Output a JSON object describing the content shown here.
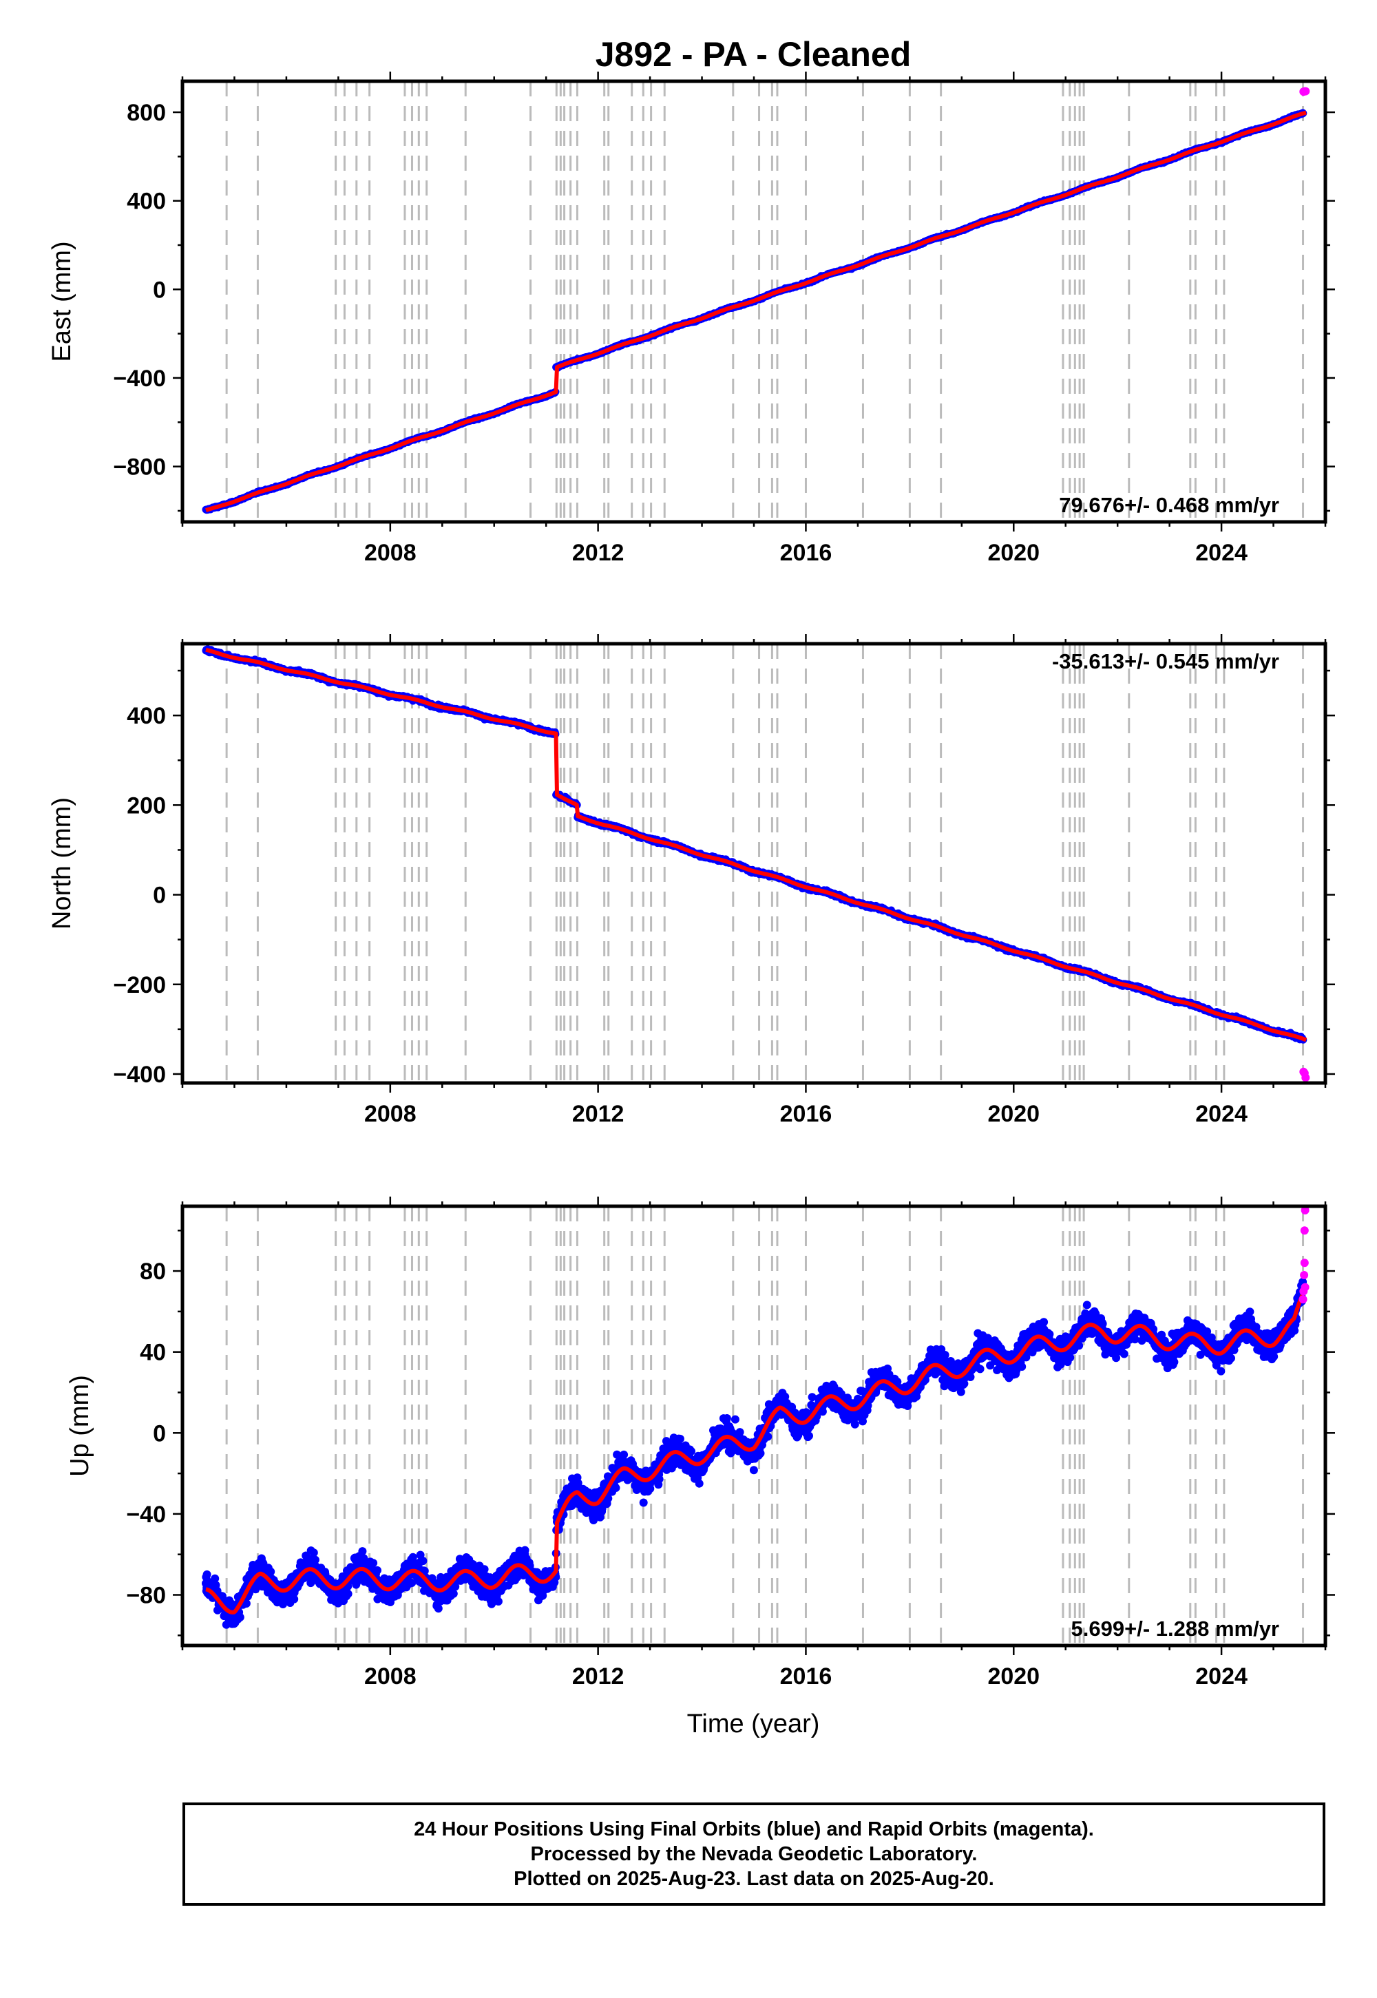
{
  "title": "J892  - PA - Cleaned",
  "xlabel": "Time (year)",
  "colors": {
    "final_orbits": "#0000ff",
    "rapid_orbits": "#ff00ff",
    "model": "#ff0000",
    "event_lines": "#bbbbbb"
  },
  "event_years": [
    2004.85,
    2005.45,
    2006.95,
    2007.12,
    2007.35,
    2007.6,
    2008.28,
    2008.42,
    2008.55,
    2008.7,
    2009.45,
    2010.7,
    2011.2,
    2011.28,
    2011.35,
    2011.47,
    2011.6,
    2012.12,
    2012.2,
    2012.65,
    2012.87,
    2013.02,
    2013.28,
    2014.6,
    2015.1,
    2015.35,
    2015.45,
    2016.0,
    2017.1,
    2018.0,
    2018.6,
    2020.95,
    2021.08,
    2021.18,
    2021.27,
    2021.35,
    2022.22,
    2023.4,
    2023.5,
    2023.9,
    2024.05,
    2025.57
  ],
  "footer": {
    "line1": "24 Hour Positions Using Final Orbits (blue) and Rapid Orbits (magenta).",
    "line2": "Processed by the Nevada Geodetic Laboratory.",
    "line3": "Plotted on 2025-Aug-23. Last data on 2025-Aug-20."
  },
  "chart_data": [
    {
      "type": "scatter",
      "component": "east",
      "ylabel": "East (mm)",
      "rate_label": "79.676+/- 0.468 mm/yr",
      "rate_position": "bottom-right",
      "xlim": [
        2004.0,
        2026.0
      ],
      "ylim": [
        -1050,
        940
      ],
      "xticks": [
        2008,
        2012,
        2016,
        2020,
        2024
      ],
      "yticks": [
        -800,
        -400,
        0,
        400,
        800
      ],
      "ytick_labels": [
        "−800",
        "−400",
        "0",
        "400",
        "800"
      ],
      "start_year": 2004.45,
      "end_year": 2025.63,
      "rate": 79.676,
      "start_value": -1000,
      "offsets": [
        {
          "year": 2011.19,
          "value": 110
        }
      ],
      "seasonal_amplitude": 3,
      "noise": 3,
      "rapid_points": [
        [
          2025.58,
          893
        ],
        [
          2025.6,
          894
        ],
        [
          2025.62,
          895
        ]
      ]
    },
    {
      "type": "scatter",
      "component": "north",
      "ylabel": "North (mm)",
      "rate_label": "-35.613+/- 0.545 mm/yr",
      "rate_position": "top-right",
      "xlim": [
        2004.0,
        2026.0
      ],
      "ylim": [
        -420,
        560
      ],
      "xticks": [
        2008,
        2012,
        2016,
        2020,
        2024
      ],
      "yticks": [
        -400,
        -200,
        0,
        200,
        400
      ],
      "ytick_labels": [
        "−400",
        "−200",
        "0",
        "200",
        "400"
      ],
      "start_year": 2004.45,
      "end_year": 2025.63,
      "rate": -27.5,
      "start_value": 545,
      "offsets": [
        {
          "year": 2011.19,
          "value": -135
        }
      ],
      "postseismic": {
        "year": 2011.19,
        "amplitude": -22,
        "tau": 0.4
      },
      "rate_after": -35.613,
      "anchor_after": {
        "year": 2011.6,
        "value": 175
      },
      "seasonal_amplitude": 2,
      "noise": 3,
      "rapid_points": [
        [
          2025.58,
          -395
        ],
        [
          2025.6,
          -398
        ],
        [
          2025.62,
          -408
        ]
      ]
    },
    {
      "type": "scatter",
      "component": "up",
      "ylabel": "Up (mm)",
      "rate_label": "5.699+/- 1.288 mm/yr",
      "rate_position": "bottom-right",
      "xlim": [
        2004.0,
        2026.0
      ],
      "ylim": [
        -105,
        112
      ],
      "xticks": [
        2008,
        2012,
        2016,
        2020,
        2024
      ],
      "yticks": [
        -80,
        -40,
        0,
        40,
        80
      ],
      "ytick_labels": [
        "−80",
        "−40",
        "0",
        "40",
        "80"
      ],
      "model_knots": [
        [
          2004.45,
          -82
        ],
        [
          2005.0,
          -84
        ],
        [
          2005.5,
          -74
        ],
        [
          2006.5,
          -72
        ],
        [
          2007.5,
          -72
        ],
        [
          2008.5,
          -73
        ],
        [
          2009.5,
          -73
        ],
        [
          2010.5,
          -70
        ],
        [
          2011.19,
          -68
        ],
        [
          2011.2,
          -45
        ],
        [
          2011.6,
          -32
        ],
        [
          2012.0,
          -30
        ],
        [
          2012.5,
          -22
        ],
        [
          2013.0,
          -18
        ],
        [
          2014.0,
          -10
        ],
        [
          2015.0,
          -3
        ],
        [
          2015.5,
          8
        ],
        [
          2016.0,
          10
        ],
        [
          2017.0,
          17
        ],
        [
          2018.0,
          25
        ],
        [
          2019.0,
          33
        ],
        [
          2020.0,
          40
        ],
        [
          2021.0,
          46
        ],
        [
          2021.7,
          50
        ],
        [
          2022.2,
          49
        ],
        [
          2023.0,
          46
        ],
        [
          2023.5,
          44
        ],
        [
          2024.0,
          44
        ],
        [
          2025.0,
          48
        ],
        [
          2025.4,
          52
        ],
        [
          2025.63,
          70
        ]
      ],
      "seasonal_amplitude": 6,
      "noise": 5,
      "rapid_points": [
        [
          2025.57,
          66
        ],
        [
          2025.58,
          70
        ],
        [
          2025.59,
          78
        ],
        [
          2025.6,
          84
        ],
        [
          2025.61,
          72
        ],
        [
          2025.6,
          100
        ],
        [
          2025.61,
          110
        ]
      ]
    }
  ]
}
